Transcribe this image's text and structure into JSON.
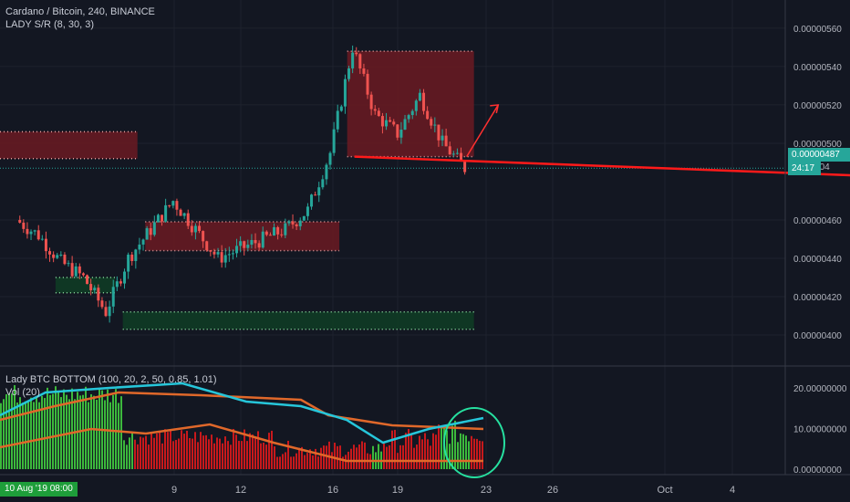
{
  "header": {
    "symbol_line": "Cardano / Bitcoin, 240, BINANCE",
    "indicator_line": "LADY S/R (8, 30, 3)"
  },
  "lower_pane": {
    "indicator_line": "Lady BTC BOTTOM (100, 20, 2, 50, 0.85, 1.01)",
    "volume_line": "Vol (20)"
  },
  "price_axis": {
    "ticks": [
      "0.00000560",
      "0.00000540",
      "0.00000520",
      "0.00000500",
      "0.00000460",
      "0.00000440",
      "0.00000420",
      "0.00000400"
    ],
    "current_price": "0.00000487",
    "hidden_tick": "0.000004",
    "timer": "24:17"
  },
  "lower_axis": {
    "ticks": [
      "20.00000000",
      "10.00000000",
      "0.00000000"
    ]
  },
  "time_axis": {
    "ticks": [
      "9",
      "12",
      "16",
      "19",
      "23",
      "26",
      "Oct",
      "4"
    ],
    "cursor_label": "10 Aug '19   08:00"
  },
  "colors": {
    "background": "#131722",
    "up": "#26a69a",
    "down": "#ef5350",
    "resistance_zone": "#6b1a22",
    "support_zone": "#0f3d25",
    "trendline": "#ff1a1a",
    "volume_green": "#3cb93c",
    "volume_red": "#c8191c",
    "upper_band": "#e0682a",
    "indicator_line": "#26c6da",
    "circle": "#26e0a0"
  },
  "chart_data": {
    "type": "candlestick",
    "title": "Cardano / Bitcoin, 240, BINANCE",
    "y_range": [
      3.9e-06,
      5.7e-06
    ],
    "price_path": [
      {
        "x": "Aug 3",
        "close": 4.6e-06
      },
      {
        "x": "Aug 4",
        "close": 4.52e-06
      },
      {
        "x": "Aug 5",
        "close": 4.38e-06
      },
      {
        "x": "Aug 6",
        "close": 4.3e-06
      },
      {
        "x": "Aug 7",
        "close": 4.12e-06
      },
      {
        "x": "Aug 8",
        "close": 4.4e-06
      },
      {
        "x": "Aug 9",
        "close": 4.55e-06
      },
      {
        "x": "Aug 10",
        "close": 4.7e-06
      },
      {
        "x": "Aug 11",
        "close": 4.55e-06
      },
      {
        "x": "Aug 12",
        "close": 4.4e-06
      },
      {
        "x": "Aug 13",
        "close": 4.45e-06
      },
      {
        "x": "Aug 14",
        "close": 4.5e-06
      },
      {
        "x": "Aug 15",
        "close": 4.55e-06
      },
      {
        "x": "Aug 16",
        "close": 4.65e-06
      },
      {
        "x": "Aug 17",
        "close": 4.95e-06
      },
      {
        "x": "Aug 18",
        "close": 5.5e-06
      },
      {
        "x": "Aug 19",
        "close": 5.15e-06
      },
      {
        "x": "Aug 20",
        "close": 5.05e-06
      },
      {
        "x": "Aug 21",
        "close": 5.25e-06
      },
      {
        "x": "Aug 22",
        "close": 5e-06
      },
      {
        "x": "Aug 23",
        "close": 4.87e-06
      }
    ],
    "zones": [
      {
        "type": "resistance",
        "from": "Aug 1",
        "to": "Aug 8",
        "top": 5.06e-06,
        "bottom": 4.92e-06
      },
      {
        "type": "support",
        "from": "Aug 1",
        "to": "Aug 1",
        "top": 4.13e-06,
        "bottom": 3.97e-06
      },
      {
        "type": "support",
        "from": "Aug 5",
        "to": "Aug 7",
        "top": 4.3e-06,
        "bottom": 4.22e-06
      },
      {
        "type": "support",
        "from": "Aug 8",
        "to": "Aug 23",
        "top": 4.12e-06,
        "bottom": 4.03e-06
      },
      {
        "type": "resistance",
        "from": "Aug 9",
        "to": "Aug 17",
        "top": 4.59e-06,
        "bottom": 4.44e-06
      },
      {
        "type": "resistance",
        "from": "Aug 18",
        "to": "Aug 23",
        "top": 5.48e-06,
        "bottom": 4.93e-06
      }
    ],
    "trendline": {
      "from": {
        "x": "Aug 18",
        "y": 4.93e-06
      },
      "to": {
        "x": "Oct 5",
        "y": 4.72e-06
      }
    },
    "arrow": {
      "from": {
        "x": "Aug 23",
        "y": 4.93e-06
      },
      "to": {
        "x": "Aug 24",
        "y": 5.2e-06
      }
    },
    "volume_panel": {
      "y_range": [
        0,
        25
      ],
      "green_segments": [
        {
          "from": "Aug 1",
          "to": "Aug 8",
          "level": 20
        },
        {
          "from": "Aug 19",
          "to": "Aug 19",
          "level": 8
        },
        {
          "from": "Aug 22",
          "to": "Aug 23",
          "level": 12
        }
      ],
      "red_segments": [
        {
          "from": "Aug 8",
          "to": "Aug 19",
          "level": 10
        },
        {
          "from": "Aug 19",
          "to": "Aug 22",
          "level": 6
        }
      ]
    }
  }
}
